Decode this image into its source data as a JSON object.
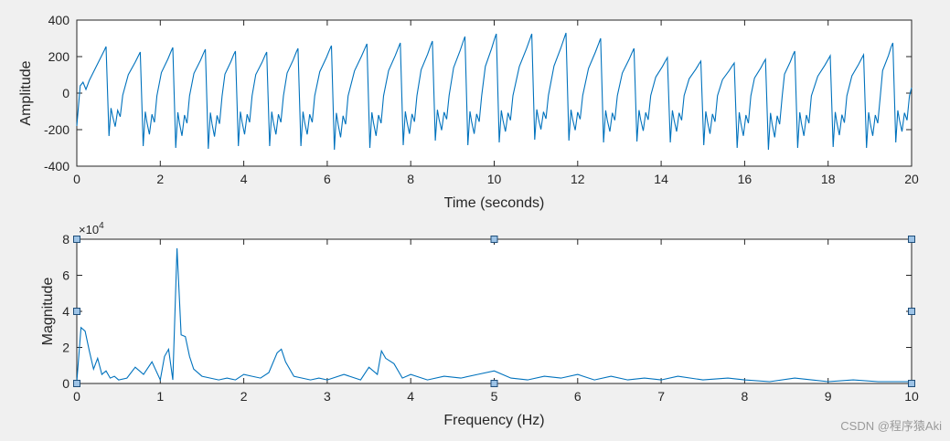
{
  "chart_data": [
    {
      "type": "line",
      "xlabel": "Time (seconds)",
      "ylabel": "Amplitude",
      "xlim": [
        0,
        20
      ],
      "ylim": [
        -400,
        400
      ],
      "xticks": [
        "0",
        "2",
        "4",
        "6",
        "8",
        "10",
        "12",
        "14",
        "16",
        "18",
        "20"
      ],
      "yticks": [
        "-400",
        "-200",
        "0",
        "200",
        "400"
      ],
      "grid": false,
      "color": "#0072bd",
      "beats": [
        {
          "t": 0.7,
          "peak": 255,
          "trough": -235
        },
        {
          "t": 1.52,
          "peak": 225,
          "trough": -290
        },
        {
          "t": 2.3,
          "peak": 250,
          "trough": -300
        },
        {
          "t": 3.08,
          "peak": 240,
          "trough": -305
        },
        {
          "t": 3.8,
          "peak": 230,
          "trough": -290
        },
        {
          "t": 4.55,
          "peak": 225,
          "trough": -290
        },
        {
          "t": 5.3,
          "peak": 245,
          "trough": -290
        },
        {
          "t": 6.1,
          "peak": 260,
          "trough": -310
        },
        {
          "t": 6.95,
          "peak": 270,
          "trough": -300
        },
        {
          "t": 7.75,
          "peak": 275,
          "trough": -285
        },
        {
          "t": 8.52,
          "peak": 285,
          "trough": -260
        },
        {
          "t": 9.3,
          "peak": 310,
          "trough": -285
        },
        {
          "t": 10.05,
          "peak": 325,
          "trough": -270
        },
        {
          "t": 10.9,
          "peak": 325,
          "trough": -255
        },
        {
          "t": 11.72,
          "peak": 330,
          "trough": -260
        },
        {
          "t": 12.55,
          "peak": 300,
          "trough": -270
        },
        {
          "t": 13.35,
          "peak": 245,
          "trough": -265
        },
        {
          "t": 14.15,
          "peak": 195,
          "trough": -270
        },
        {
          "t": 14.95,
          "peak": 175,
          "trough": -285
        },
        {
          "t": 15.75,
          "peak": 165,
          "trough": -300
        },
        {
          "t": 16.5,
          "peak": 185,
          "trough": -310
        },
        {
          "t": 17.2,
          "peak": 230,
          "trough": -300
        },
        {
          "t": 18.05,
          "peak": 205,
          "trough": -295
        },
        {
          "t": 18.85,
          "peak": 210,
          "trough": -300
        },
        {
          "t": 19.55,
          "peak": 275,
          "trough": -270
        }
      ],
      "end_point": {
        "t": 20.0,
        "y": 30
      }
    },
    {
      "type": "line",
      "xlabel": "Frequency (Hz)",
      "ylabel": "Magnitude",
      "xlim": [
        0,
        10
      ],
      "ylim": [
        0,
        80000
      ],
      "xticks": [
        "0",
        "1",
        "2",
        "3",
        "4",
        "5",
        "6",
        "7",
        "8",
        "9",
        "10"
      ],
      "yticks": [
        "0",
        "2",
        "4",
        "6",
        "8"
      ],
      "exponent_label": "×10",
      "exponent_power": "4",
      "grid": false,
      "color": "#0072bd",
      "x": [
        0.0,
        0.05,
        0.1,
        0.15,
        0.2,
        0.25,
        0.3,
        0.35,
        0.4,
        0.45,
        0.5,
        0.6,
        0.7,
        0.8,
        0.9,
        1.0,
        1.05,
        1.1,
        1.15,
        1.2,
        1.25,
        1.3,
        1.35,
        1.4,
        1.5,
        1.6,
        1.7,
        1.8,
        1.9,
        2.0,
        2.1,
        2.2,
        2.3,
        2.4,
        2.45,
        2.5,
        2.6,
        2.7,
        2.8,
        2.9,
        3.0,
        3.2,
        3.4,
        3.5,
        3.6,
        3.65,
        3.7,
        3.8,
        3.9,
        4.0,
        4.2,
        4.4,
        4.6,
        4.8,
        5.0,
        5.2,
        5.4,
        5.6,
        5.8,
        6.0,
        6.2,
        6.4,
        6.6,
        6.8,
        7.0,
        7.2,
        7.5,
        7.8,
        8.0,
        8.3,
        8.6,
        9.0,
        9.3,
        9.6,
        10.0
      ],
      "y": [
        1000,
        31000,
        29000,
        18000,
        8000,
        14000,
        5000,
        7000,
        3000,
        4000,
        2000,
        3000,
        9000,
        5000,
        12000,
        2000,
        15000,
        19000,
        2000,
        75000,
        27000,
        26000,
        15000,
        8000,
        4000,
        3000,
        2000,
        3000,
        2000,
        5000,
        4000,
        3000,
        6000,
        17000,
        19000,
        12000,
        4000,
        3000,
        2000,
        3000,
        2000,
        5000,
        2000,
        9000,
        5000,
        18000,
        14000,
        11000,
        3000,
        5000,
        2000,
        4000,
        3000,
        5000,
        7000,
        3000,
        2000,
        4000,
        3000,
        5000,
        2000,
        4000,
        2000,
        3000,
        2000,
        4000,
        2000,
        3000,
        2000,
        1000,
        3000,
        1000,
        2000,
        1000,
        1000
      ]
    }
  ],
  "watermark": "CSDN @程序猿Aki"
}
